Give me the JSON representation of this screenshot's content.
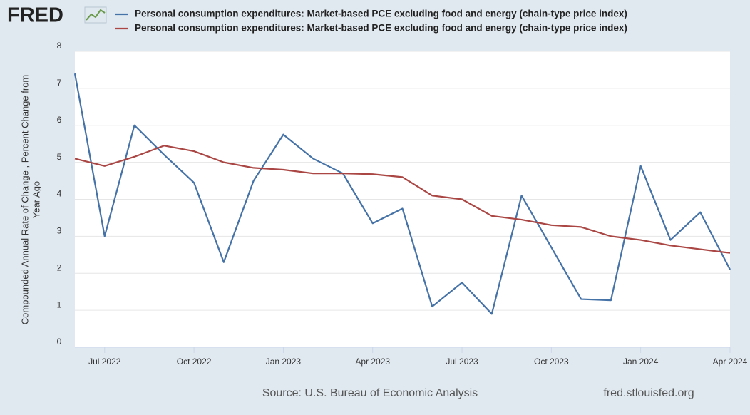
{
  "chart_data": {
    "type": "line",
    "logo": "FRED",
    "ylabel": [
      "Compounded Annual Rate of Change , Percent Change from",
      "Year Ago"
    ],
    "x": [
      "2022-06",
      "2022-07",
      "2022-08",
      "2022-09",
      "2022-10",
      "2022-11",
      "2022-12",
      "2023-01",
      "2023-02",
      "2023-03",
      "2023-04",
      "2023-05",
      "2023-06",
      "2023-07",
      "2023-08",
      "2023-09",
      "2023-10",
      "2023-11",
      "2023-12",
      "2024-01",
      "2024-02",
      "2024-03",
      "2024-04"
    ],
    "series": [
      {
        "name": "Personal consumption expenditures: Market-based PCE excluding food and energy (chain-type price index)",
        "color": "#4572a7",
        "values": [
          7.4,
          3.0,
          6.0,
          5.2,
          4.45,
          2.3,
          4.5,
          5.75,
          5.1,
          4.7,
          3.35,
          3.75,
          1.1,
          1.75,
          0.9,
          4.1,
          2.7,
          1.3,
          1.27,
          4.9,
          2.9,
          3.65,
          2.1
        ]
      },
      {
        "name": "Personal consumption expenditures: Market-based PCE excluding food and energy (chain-type price index)",
        "color": "#aa4643",
        "values": [
          5.1,
          4.9,
          5.15,
          5.45,
          5.3,
          5.0,
          4.85,
          4.8,
          4.7,
          4.7,
          4.68,
          4.6,
          4.1,
          4.0,
          3.55,
          3.45,
          3.3,
          3.25,
          3.0,
          2.9,
          2.75,
          2.65,
          2.55
        ]
      }
    ],
    "xlim": [
      "2022-06",
      "2024-04"
    ],
    "xticks": [
      {
        "value": "2022-07",
        "label": "Jul 2022"
      },
      {
        "value": "2022-10",
        "label": "Oct 2022"
      },
      {
        "value": "2023-01",
        "label": "Jan 2023"
      },
      {
        "value": "2023-04",
        "label": "Apr 2023"
      },
      {
        "value": "2023-07",
        "label": "Jul 2023"
      },
      {
        "value": "2023-10",
        "label": "Oct 2023"
      },
      {
        "value": "2024-01",
        "label": "Jan 2024"
      },
      {
        "value": "2024-04",
        "label": "Apr 2024"
      }
    ],
    "ylim": [
      0,
      8
    ],
    "yticks": [
      0,
      1,
      2,
      3,
      4,
      5,
      6,
      7,
      8
    ],
    "grid": true,
    "source": "Source: U.S. Bureau of Economic Analysis",
    "site": "fred.stlouisfed.org"
  }
}
